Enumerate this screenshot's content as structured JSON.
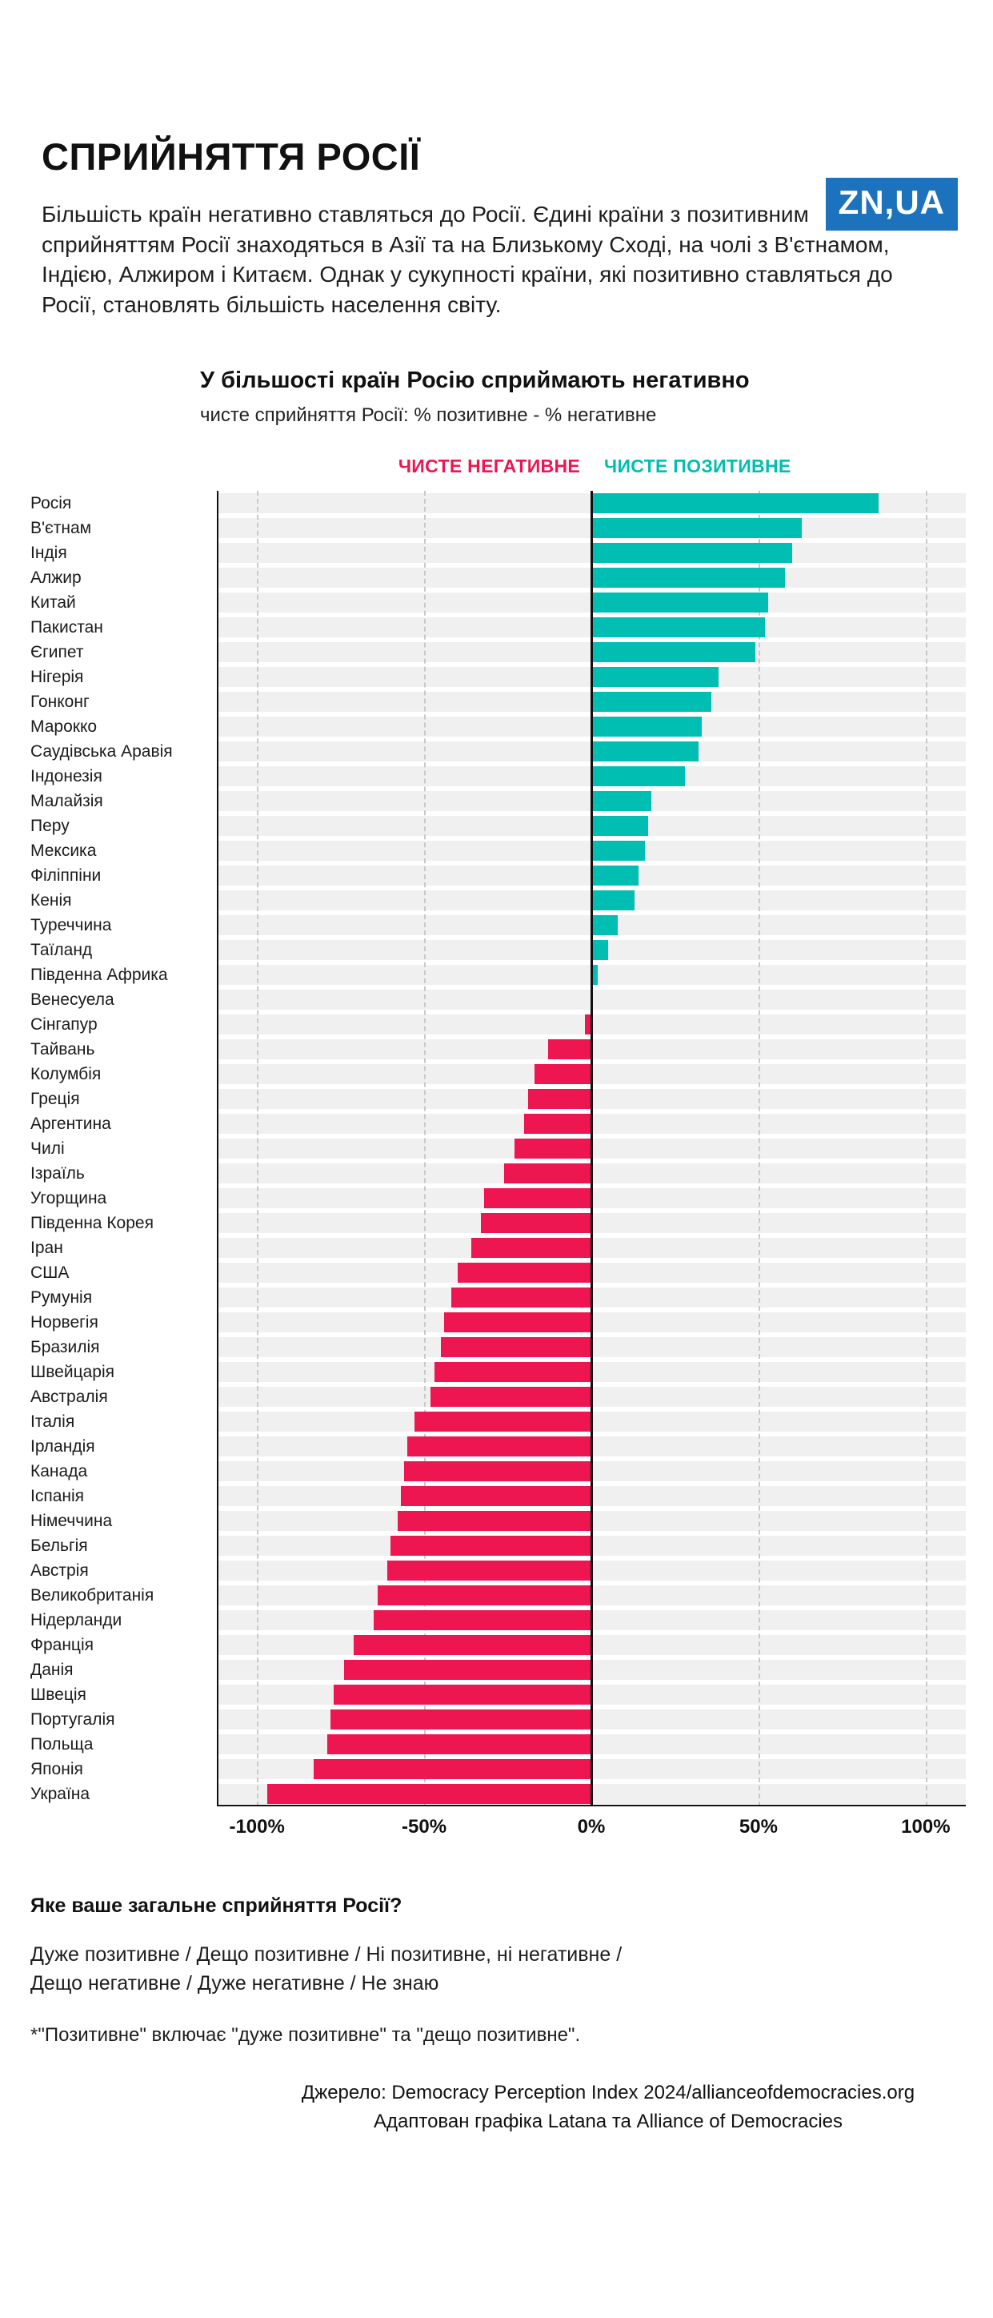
{
  "logo": {
    "text": "ZN,UA",
    "background": "#1C72BC",
    "text_color": "#FFFFFF"
  },
  "header": {
    "title": "СПРИЙНЯТТЯ РОСІЇ",
    "intro": "Більшість країн негативно ставляться до Росії. Єдині країни з позитивним сприйняттям Росії знаходяться в Азії та на Близькому Сході, на чолі з В'єтнамом, Індією, Алжиром і Китаєм. Однак у сукупності країни, які позитивно ставляться до Росії, становлять більшість населення світу."
  },
  "chart_data": {
    "type": "bar",
    "orientation": "horizontal",
    "title": "У більшості країн Росію сприймають негативно",
    "subtitle": "чисте сприйняття Росії: % позитивне - % негативне",
    "unit": "%",
    "xlim": [
      -100,
      100
    ],
    "x_plot_range": [
      -112,
      112
    ],
    "grid": "dashed-vertical",
    "legend": [
      {
        "label": "ЧИСТЕ НЕГАТИВНЕ",
        "color": "#ED1651"
      },
      {
        "label": "ЧИСТЕ ПОЗИТИВНЕ",
        "color": "#00BFB2"
      }
    ],
    "colors": {
      "negative": "#ED1651",
      "positive": "#00BFB2",
      "band": "#F0F0F0"
    },
    "x_ticks": [
      {
        "label": "-100%",
        "value": -100
      },
      {
        "label": "-50%",
        "value": -50
      },
      {
        "label": "0%",
        "value": 0
      },
      {
        "label": "50%",
        "value": 50
      },
      {
        "label": "100%",
        "value": 100
      }
    ],
    "categories": [
      "Росія",
      "В'єтнам",
      "Індія",
      "Алжир",
      "Китай",
      "Пакистан",
      "Єгипет",
      "Нігерія",
      "Гонконг",
      "Марокко",
      "Саудівська Аравія",
      "Індонезія",
      "Малайзія",
      "Перу",
      "Мексика",
      "Філіппіни",
      "Кенія",
      "Туреччина",
      "Таїланд",
      "Південна Африка",
      "Венесуела",
      "Сінгапур",
      "Тайвань",
      "Колумбія",
      "Греція",
      "Аргентина",
      "Чилі",
      "Ізраїль",
      "Угорщина",
      "Південна Корея",
      "Іран",
      "США",
      "Румунія",
      "Норвегія",
      "Бразилія",
      "Швейцарія",
      "Австралія",
      "Італія",
      "Ірландія",
      "Канада",
      "Іспанія",
      "Німеччина",
      "Бельгія",
      "Австрія",
      "Великобританія",
      "Нідерланди",
      "Франція",
      "Данія",
      "Швеція",
      "Португалія",
      "Польща",
      "Японія",
      "Україна"
    ],
    "values": [
      86,
      63,
      60,
      58,
      53,
      52,
      49,
      38,
      36,
      33,
      32,
      28,
      18,
      17,
      16,
      14,
      13,
      8,
      5,
      2,
      0,
      -2,
      -13,
      -17,
      -19,
      -20,
      -23,
      -26,
      -32,
      -33,
      -36,
      -40,
      -42,
      -44,
      -45,
      -47,
      -48,
      -53,
      -55,
      -56,
      -57,
      -58,
      -60,
      -61,
      -64,
      -65,
      -71,
      -74,
      -77,
      -78,
      -79,
      -83,
      -97
    ]
  },
  "footer": {
    "question": "Яке ваше загальне сприйняття Росії?",
    "options_line1": "Дуже позитивне / Дещо позитивне / Ні позитивне, ні негативне /",
    "options_line2": "Дещо негативне / Дуже негативне / Не знаю",
    "footnote": "*\"Позитивне\" включає \"дуже позитивне\" та \"дещо позитивне\".",
    "source_line1": "Джерело: Democracy Perception Index 2024/allianceofdemocracies.org",
    "source_line2": "Адаптован графіка Latana та Alliance of Democracies"
  }
}
